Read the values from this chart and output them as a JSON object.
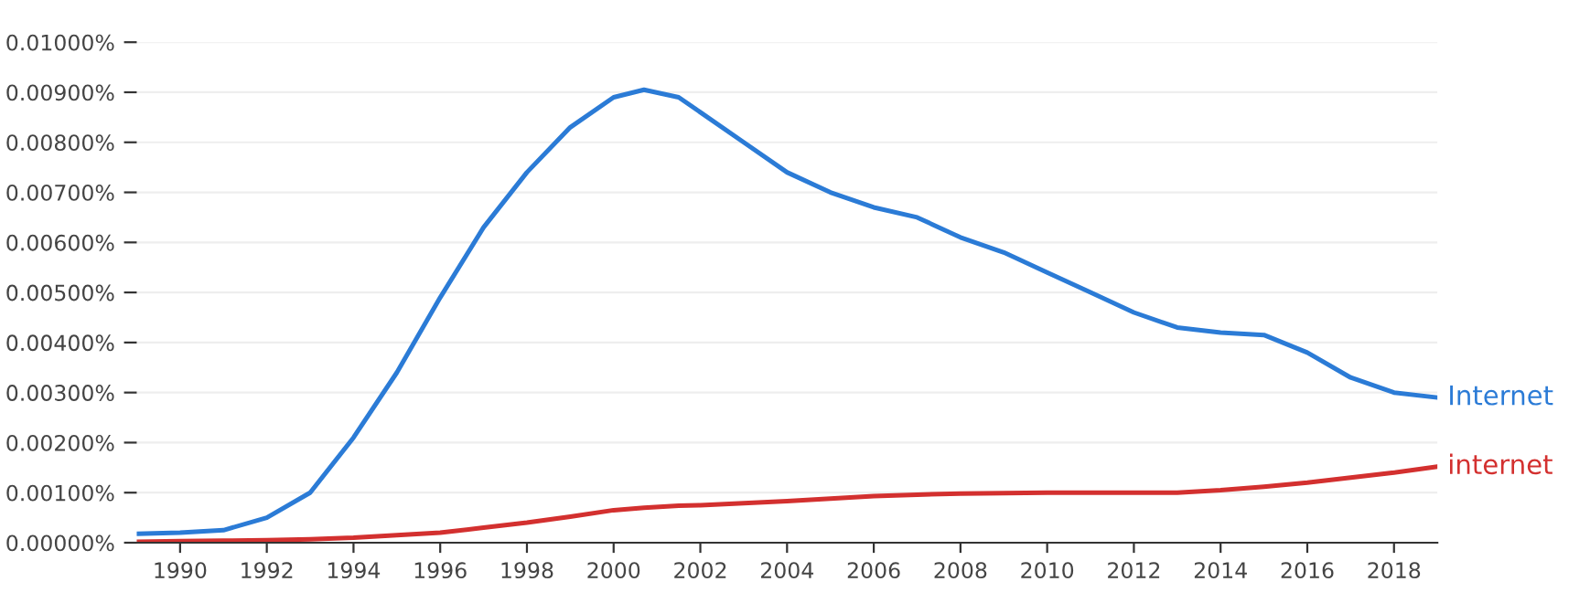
{
  "chart_data": {
    "type": "line",
    "x": [
      1989,
      1990,
      1991,
      1992,
      1993,
      1994,
      1995,
      1996,
      1997,
      1998,
      1999,
      2000,
      2000.7,
      2001.5,
      2002,
      2003,
      2004,
      2005,
      2006,
      2007,
      2008,
      2009,
      2010,
      2011,
      2012,
      2013,
      2014,
      2015,
      2016,
      2017,
      2018,
      2019
    ],
    "series": [
      {
        "name": "Internet",
        "color": "#2b7bd6",
        "values": [
          0.00018,
          0.0002,
          0.00025,
          0.0005,
          0.001,
          0.0021,
          0.0034,
          0.0049,
          0.0063,
          0.0074,
          0.0083,
          0.0089,
          0.00905,
          0.0089,
          0.0086,
          0.008,
          0.0074,
          0.007,
          0.0067,
          0.0065,
          0.0061,
          0.0058,
          0.0054,
          0.005,
          0.0046,
          0.0043,
          0.0042,
          0.00415,
          0.0038,
          0.0033,
          0.003,
          0.0029
        ]
      },
      {
        "name": "internet",
        "color": "#d3302f",
        "values": [
          2e-05,
          3e-05,
          4e-05,
          5e-05,
          7e-05,
          0.0001,
          0.00015,
          0.0002,
          0.0003,
          0.0004,
          0.00052,
          0.00065,
          0.0007,
          0.00074,
          0.00075,
          0.00079,
          0.00083,
          0.00088,
          0.00093,
          0.00096,
          0.00098,
          0.00099,
          0.001,
          0.001,
          0.001,
          0.001,
          0.00105,
          0.00112,
          0.0012,
          0.0013,
          0.0014,
          0.00152
        ]
      }
    ],
    "xlim": [
      1989,
      2019
    ],
    "xticks": [
      1990,
      1992,
      1994,
      1996,
      1998,
      2000,
      2002,
      2004,
      2006,
      2008,
      2010,
      2012,
      2014,
      2016,
      2018
    ],
    "ylim": [
      0,
      0.01
    ],
    "yticks": [
      {
        "value": 0,
        "label": "0.00000%"
      },
      {
        "value": 0.001,
        "label": "0.00100%"
      },
      {
        "value": 0.002,
        "label": "0.00200%"
      },
      {
        "value": 0.003,
        "label": "0.00300%"
      },
      {
        "value": 0.004,
        "label": "0.00400%"
      },
      {
        "value": 0.005,
        "label": "0.00500%"
      },
      {
        "value": 0.006,
        "label": "0.00600%"
      },
      {
        "value": 0.007,
        "label": "0.00700%"
      },
      {
        "value": 0.008,
        "label": "0.00800%"
      },
      {
        "value": 0.009,
        "label": "0.00900%"
      },
      {
        "value": 0.01,
        "label": "0.01000%"
      }
    ],
    "grid": "y",
    "legend": false,
    "marker": "none",
    "line_style": "solid"
  }
}
